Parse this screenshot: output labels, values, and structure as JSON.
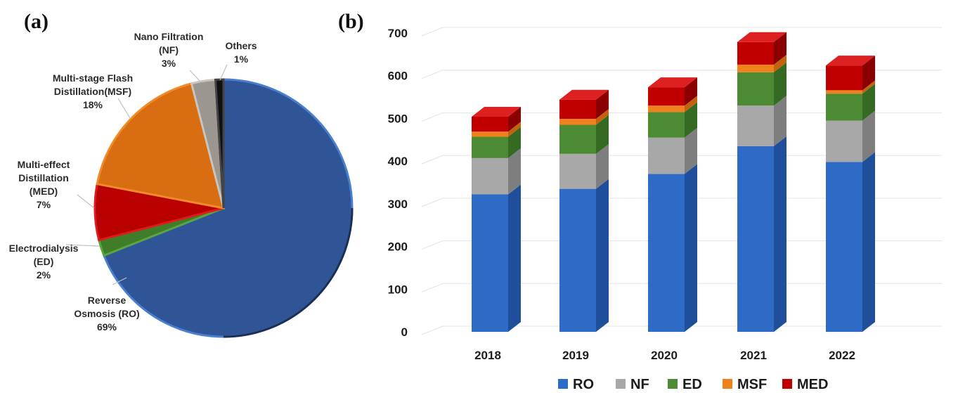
{
  "panels": {
    "a": "(a)",
    "b": "(b)"
  },
  "chart_data": [
    {
      "type": "pie",
      "slices": [
        {
          "key": "RO",
          "lines": [
            "Reverse",
            "Osmosis (RO)"
          ],
          "pct_label": "69%",
          "value": 69,
          "color": "#2f5597",
          "edge": "#4a7fd0"
        },
        {
          "key": "ED",
          "lines": [
            "Electrodialysis",
            "(ED)"
          ],
          "pct_label": "2%",
          "value": 2,
          "color": "#3f7d2a",
          "edge": "#5ba43e"
        },
        {
          "key": "MED",
          "lines": [
            "Multi-effect",
            "Distillation",
            "(MED)"
          ],
          "pct_label": "7%",
          "value": 7,
          "color": "#b80000",
          "edge": "#e01a1a"
        },
        {
          "key": "MSF",
          "lines": [
            "Multi-stage Flash",
            "Distillation(MSF)"
          ],
          "pct_label": "18%",
          "value": 18,
          "color": "#d86d12",
          "edge": "#f08a2a"
        },
        {
          "key": "NF",
          "lines": [
            "Nano Filtration",
            "(NF)"
          ],
          "pct_label": "3%",
          "value": 3,
          "color": "#9b968f",
          "edge": "#c9c4bd"
        },
        {
          "key": "OTH",
          "lines": [
            "Others"
          ],
          "pct_label": "1%",
          "value": 1,
          "color": "#111111",
          "edge": "#444444"
        }
      ]
    },
    {
      "type": "bar",
      "stacked": true,
      "categories": [
        "2018",
        "2019",
        "2020",
        "2021",
        "2022"
      ],
      "ylim": [
        0,
        700
      ],
      "yticks": [
        0,
        100,
        200,
        300,
        400,
        500,
        600,
        700
      ],
      "grid": true,
      "legend_position": "bottom",
      "series": [
        {
          "name": "RO",
          "color": "#2e6bc6",
          "side": "#1f4f9a",
          "top": "#4a86da",
          "values": [
            322,
            335,
            370,
            435,
            398
          ]
        },
        {
          "name": "NF",
          "color": "#a8a8a8",
          "side": "#7e7e7e",
          "top": "#c4c4c4",
          "values": [
            85,
            82,
            85,
            95,
            97
          ]
        },
        {
          "name": "ED",
          "color": "#4d8a34",
          "side": "#346a22",
          "top": "#67a84a",
          "values": [
            50,
            68,
            60,
            78,
            63
          ]
        },
        {
          "name": "MSF",
          "color": "#f0821e",
          "side": "#c4620f",
          "top": "#f8a34c",
          "values": [
            12,
            14,
            15,
            18,
            8
          ]
        },
        {
          "name": "MED",
          "color": "#c00000",
          "side": "#8a0000",
          "top": "#dd2020",
          "values": [
            35,
            45,
            43,
            53,
            58
          ]
        }
      ]
    }
  ]
}
